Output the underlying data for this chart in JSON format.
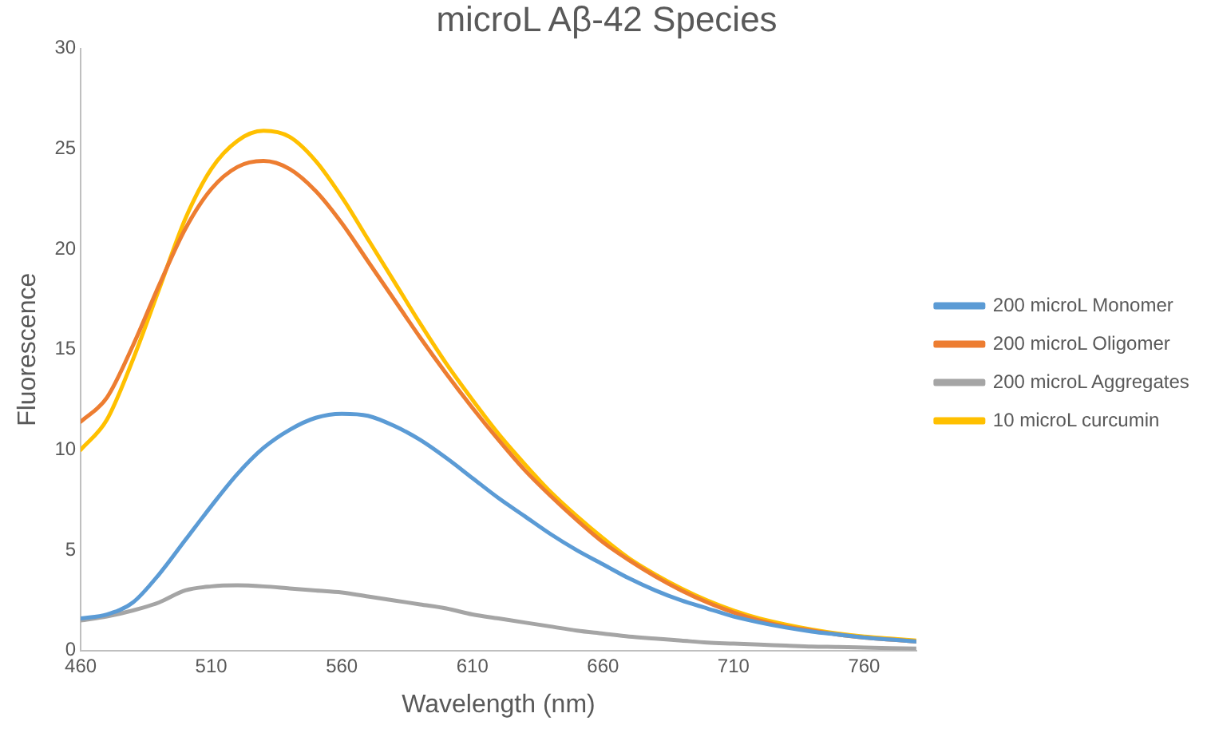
{
  "chart_data": {
    "type": "line",
    "title": "microL Aβ-42 Species",
    "xlabel": "Wavelength (nm)",
    "ylabel": "Fluorescence",
    "x": [
      460,
      470,
      480,
      490,
      500,
      510,
      520,
      530,
      540,
      550,
      560,
      570,
      580,
      590,
      600,
      610,
      620,
      630,
      640,
      650,
      660,
      670,
      680,
      690,
      700,
      710,
      720,
      730,
      740,
      750,
      760,
      770,
      780
    ],
    "series": [
      {
        "name": "200 microL Monomer",
        "color": "#5b9bd5",
        "values": [
          1.6,
          1.8,
          2.4,
          3.8,
          5.5,
          7.2,
          8.8,
          10.1,
          11.0,
          11.6,
          11.8,
          11.7,
          11.2,
          10.5,
          9.6,
          8.6,
          7.6,
          6.7,
          5.8,
          5.0,
          4.3,
          3.6,
          3.0,
          2.5,
          2.1,
          1.7,
          1.4,
          1.15,
          0.95,
          0.8,
          0.65,
          0.55,
          0.45
        ]
      },
      {
        "name": "200 microL Oligomer",
        "color": "#ed7d31",
        "values": [
          11.4,
          12.6,
          15.2,
          18.2,
          21.0,
          23.0,
          24.1,
          24.4,
          24.0,
          22.9,
          21.3,
          19.4,
          17.5,
          15.6,
          13.8,
          12.1,
          10.5,
          9.0,
          7.7,
          6.5,
          5.4,
          4.5,
          3.7,
          3.0,
          2.4,
          1.9,
          1.5,
          1.2,
          1.0,
          0.8,
          0.65,
          0.55,
          0.45
        ]
      },
      {
        "name": "200 microL Aggregates",
        "color": "#a5a5a5",
        "values": [
          1.5,
          1.7,
          2.0,
          2.4,
          3.0,
          3.2,
          3.25,
          3.2,
          3.1,
          3.0,
          2.9,
          2.7,
          2.5,
          2.3,
          2.1,
          1.8,
          1.6,
          1.4,
          1.2,
          1.0,
          0.85,
          0.7,
          0.6,
          0.5,
          0.4,
          0.35,
          0.3,
          0.25,
          0.2,
          0.18,
          0.15,
          0.12,
          0.1
        ]
      },
      {
        "name": "10 microL curcumin",
        "color": "#ffc000",
        "values": [
          10.0,
          11.5,
          14.5,
          18.0,
          21.5,
          24.0,
          25.4,
          25.9,
          25.6,
          24.4,
          22.6,
          20.5,
          18.4,
          16.3,
          14.3,
          12.5,
          10.8,
          9.3,
          7.9,
          6.7,
          5.6,
          4.6,
          3.8,
          3.1,
          2.5,
          2.0,
          1.6,
          1.3,
          1.05,
          0.85,
          0.7,
          0.6,
          0.5
        ]
      }
    ],
    "xlim": [
      460,
      780
    ],
    "xticks": [
      460,
      510,
      560,
      610,
      660,
      710,
      760
    ],
    "ylim": [
      0,
      30
    ],
    "yticks": [
      0,
      5,
      10,
      15,
      20,
      25,
      30
    ],
    "grid": false,
    "legend": "right",
    "marker": "none",
    "line_style": "solid"
  }
}
